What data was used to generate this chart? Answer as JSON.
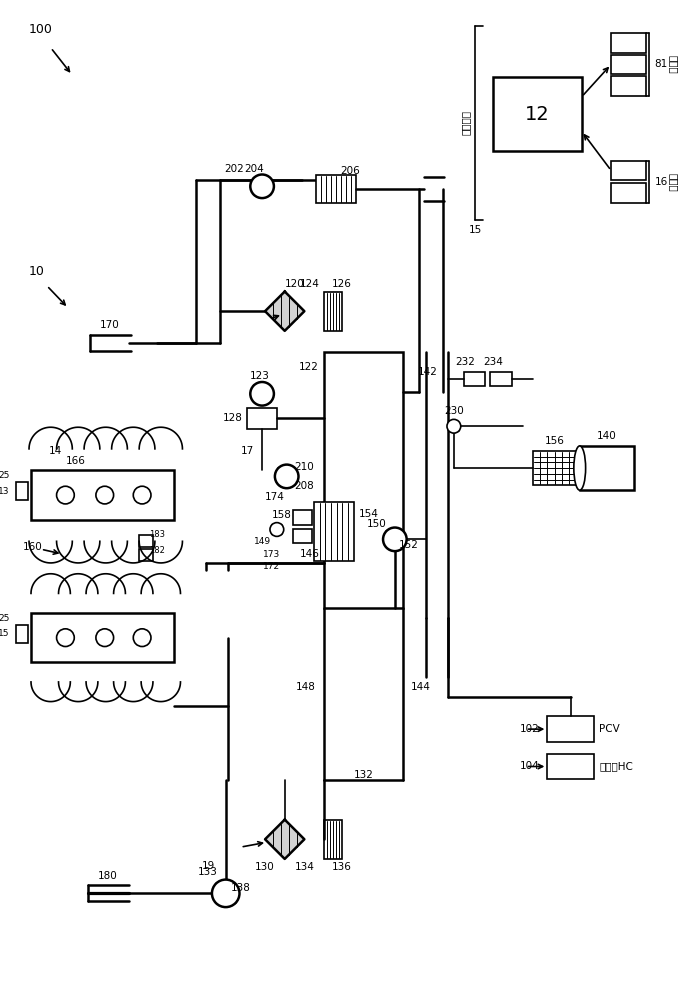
{
  "bg_color": "#ffffff",
  "lw": 1.2,
  "lw2": 1.8,
  "fs": 7.5,
  "control_sys_text": "控制系统",
  "actuators_text": "致动器",
  "sensors_text": "传感器",
  "purge_hc": "吹洗的HC"
}
